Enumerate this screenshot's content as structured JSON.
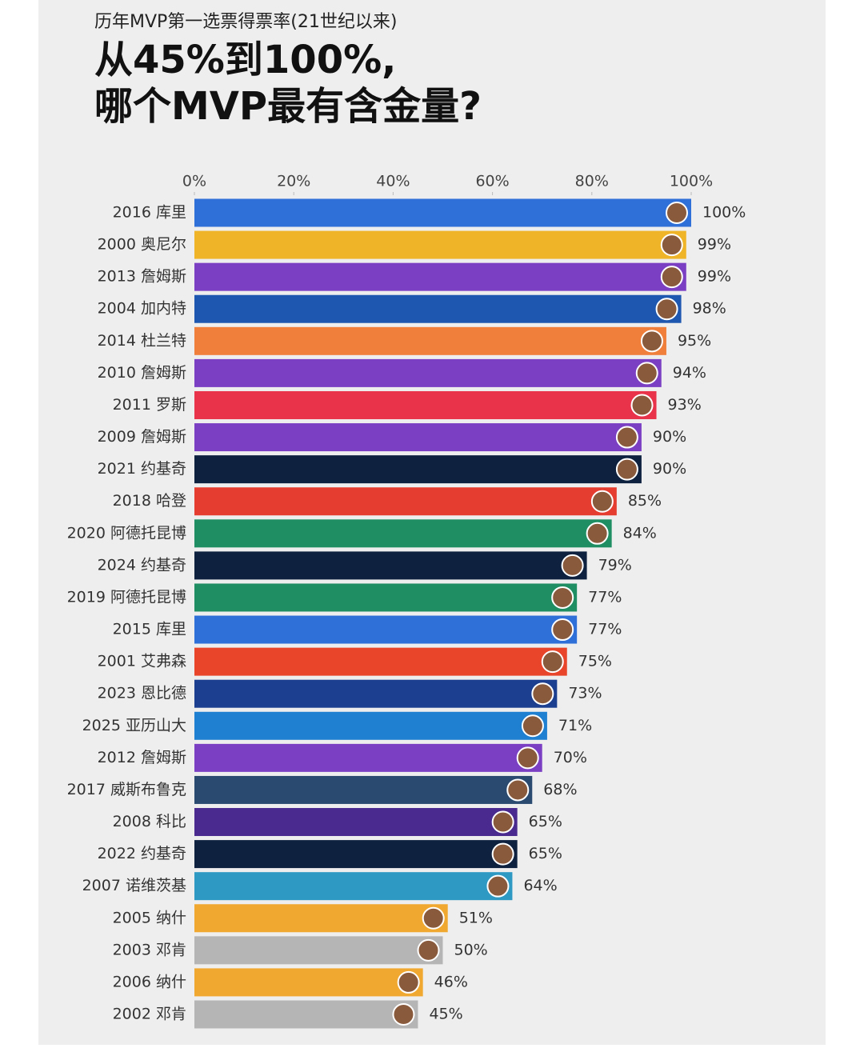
{
  "chart_data": {
    "type": "bar",
    "orientation": "horizontal",
    "subtitle": "历年MVP第一选票得票率(21世纪以来)",
    "title": [
      "从45%到100%,",
      "哪个MVP最有含金量?"
    ],
    "categories": [
      "2016 库里",
      "2000 奥尼尔",
      "2013 詹姆斯",
      "2004 加内特",
      "2014 杜兰特",
      "2010 詹姆斯",
      "2011 罗斯",
      "2009 詹姆斯",
      "2021 约基奇",
      "2018 哈登",
      "2020 阿德托昆博",
      "2024 约基奇",
      "2019 阿德托昆博",
      "2015 库里",
      "2001 艾弗森",
      "2023 恩比德",
      "2025 亚历山大",
      "2012 詹姆斯",
      "2017 威斯布鲁克",
      "2008 科比",
      "2022 约基奇",
      "2007 诺维茨基",
      "2005 纳什",
      "2003 邓肯",
      "2006 纳什",
      "2002 邓肯"
    ],
    "values": [
      100,
      99,
      99,
      98,
      95,
      94,
      93,
      90,
      90,
      85,
      84,
      79,
      77,
      77,
      75,
      73,
      71,
      70,
      68,
      65,
      65,
      64,
      51,
      50,
      46,
      45
    ],
    "value_labels": [
      "100%",
      "99%",
      "99%",
      "98%",
      "95%",
      "94%",
      "93%",
      "90%",
      "90%",
      "85%",
      "84%",
      "79%",
      "77%",
      "77%",
      "75%",
      "73%",
      "71%",
      "70%",
      "68%",
      "65%",
      "65%",
      "64%",
      "51%",
      "50%",
      "46%",
      "45%"
    ],
    "colors": [
      "#2f6fd8",
      "#f0b429",
      "#7b3fc4",
      "#1d57b0",
      "#f07f3c",
      "#7b3fc4",
      "#e8334a",
      "#7b3fc4",
      "#0e2240",
      "#e53d2f",
      "#1f8f63",
      "#0e2240",
      "#1f8f63",
      "#2f6fd8",
      "#e8452a",
      "#1d3f8f",
      "#1f7fd0",
      "#7b3fc4",
      "#2a4a70",
      "#4a2a8e",
      "#0e2240",
      "#2e9ac4",
      "#f0a830",
      "#b5b5b5",
      "#f0a830",
      "#b5b5b5"
    ],
    "xlim": [
      0,
      100
    ],
    "xticks": [
      {
        "value": 0,
        "label": "0%"
      },
      {
        "value": 20,
        "label": "20%"
      },
      {
        "value": 40,
        "label": "40%"
      },
      {
        "value": 60,
        "label": "60%"
      },
      {
        "value": 80,
        "label": "80%"
      },
      {
        "value": 100,
        "label": "100%"
      }
    ]
  }
}
